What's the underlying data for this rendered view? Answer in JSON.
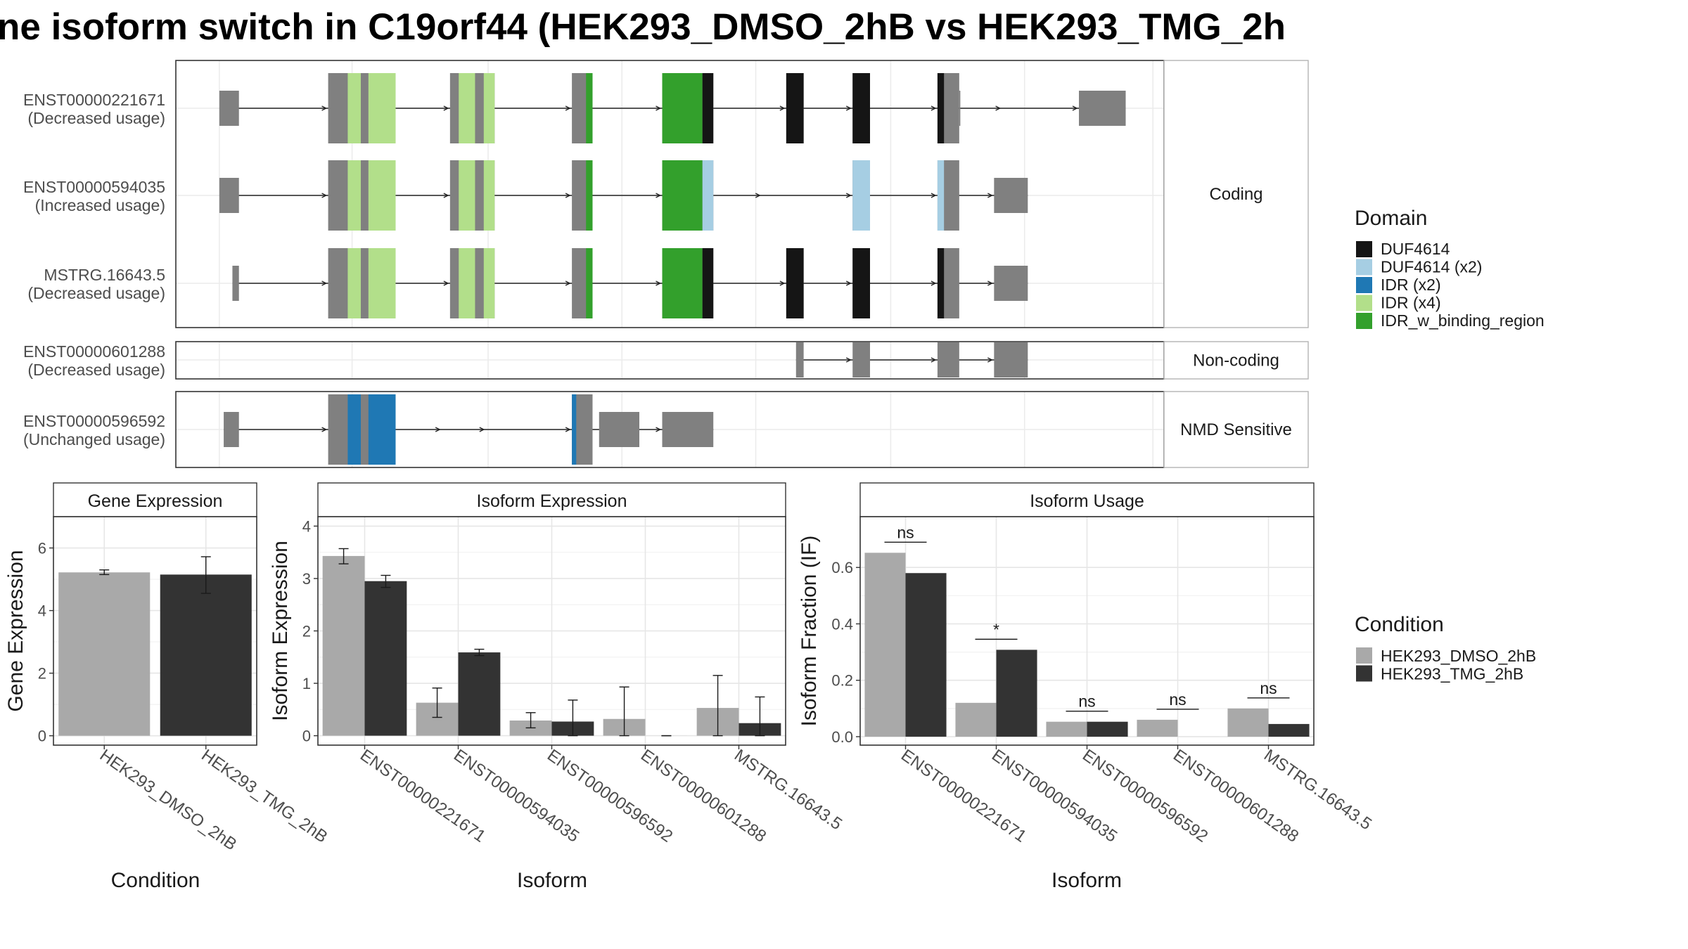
{
  "title": "ne isoform switch in C19orf44 (HEK293_DMSO_2hB vs HEK293_TMG_2h",
  "colors": {
    "DUF4614": "#151515",
    "DUF4614 (x2)": "#a6cee3",
    "IDR (x2)": "#1f78b4",
    "IDR (x4)": "#b2df8a",
    "IDR_w_binding_region": "#33a02c",
    "exon": "#808080",
    "cond_dmso": "#a9a9a9",
    "cond_tmg": "#333333"
  },
  "structure": {
    "groups": [
      {
        "label": "Coding",
        "transcripts": [
          0,
          1,
          2
        ]
      },
      {
        "label": "Non-coding",
        "transcripts": [
          3
        ]
      },
      {
        "label": "NMD Sensitive",
        "transcripts": [
          4
        ]
      }
    ],
    "transcripts": [
      {
        "id": "ENST00000221671",
        "usage": "(Decreased usage)",
        "exons": [
          [
            200,
            218,
            "s"
          ],
          [
            300,
            362,
            "t"
          ],
          [
            412,
            453,
            "t"
          ],
          [
            524,
            543,
            "t"
          ],
          [
            607,
            654,
            "t"
          ],
          [
            721,
            737,
            "t"
          ],
          [
            782,
            798,
            "t"
          ],
          [
            860,
            880,
            "t"
          ],
          [
            880,
            881,
            "s"
          ],
          [
            990,
            1033,
            "s"
          ]
        ],
        "domains": [
          [
            318,
            330,
            "IDR (x4)"
          ],
          [
            337,
            362,
            "IDR (x4)"
          ],
          [
            420,
            435,
            "IDR (x4)"
          ],
          [
            443,
            453,
            "IDR (x4)"
          ],
          [
            537,
            543,
            "IDR_w_binding_region"
          ],
          [
            607,
            644,
            "IDR_w_binding_region"
          ],
          [
            644,
            654,
            "DUF4614"
          ],
          [
            721,
            737,
            "DUF4614"
          ],
          [
            782,
            798,
            "DUF4614"
          ],
          [
            860,
            866,
            "DUF4614"
          ]
        ]
      },
      {
        "id": "ENST00000594035",
        "usage": "(Increased usage)",
        "exons": [
          [
            200,
            218,
            "s"
          ],
          [
            300,
            362,
            "t"
          ],
          [
            412,
            453,
            "t"
          ],
          [
            524,
            543,
            "t"
          ],
          [
            607,
            654,
            "t"
          ],
          [
            782,
            798,
            "t"
          ],
          [
            860,
            880,
            "t"
          ],
          [
            912,
            943,
            "s"
          ]
        ],
        "domains": [
          [
            318,
            330,
            "IDR (x4)"
          ],
          [
            337,
            362,
            "IDR (x4)"
          ],
          [
            420,
            435,
            "IDR (x4)"
          ],
          [
            443,
            453,
            "IDR (x4)"
          ],
          [
            537,
            543,
            "IDR_w_binding_region"
          ],
          [
            607,
            644,
            "IDR_w_binding_region"
          ],
          [
            644,
            654,
            "DUF4614 (x2)"
          ],
          [
            782,
            798,
            "DUF4614 (x2)"
          ],
          [
            860,
            866,
            "DUF4614 (x2)"
          ]
        ]
      },
      {
        "id": "MSTRG.16643.5",
        "usage": "(Decreased usage)",
        "exons": [
          [
            212,
            218,
            "s"
          ],
          [
            300,
            362,
            "t"
          ],
          [
            412,
            453,
            "t"
          ],
          [
            524,
            543,
            "t"
          ],
          [
            607,
            654,
            "t"
          ],
          [
            721,
            737,
            "t"
          ],
          [
            782,
            798,
            "t"
          ],
          [
            860,
            880,
            "t"
          ],
          [
            912,
            943,
            "s"
          ]
        ],
        "domains": [
          [
            318,
            330,
            "IDR (x4)"
          ],
          [
            337,
            362,
            "IDR (x4)"
          ],
          [
            420,
            435,
            "IDR (x4)"
          ],
          [
            443,
            453,
            "IDR (x4)"
          ],
          [
            537,
            543,
            "IDR_w_binding_region"
          ],
          [
            607,
            644,
            "IDR_w_binding_region"
          ],
          [
            644,
            654,
            "DUF4614"
          ],
          [
            721,
            737,
            "DUF4614"
          ],
          [
            782,
            798,
            "DUF4614"
          ],
          [
            860,
            866,
            "DUF4614"
          ]
        ]
      },
      {
        "id": "ENST00000601288",
        "usage": "(Decreased usage)",
        "exons": [
          [
            730,
            737,
            "s"
          ],
          [
            782,
            798,
            "s"
          ],
          [
            860,
            880,
            "s"
          ],
          [
            912,
            943,
            "s"
          ]
        ],
        "domains": []
      },
      {
        "id": "ENST00000596592",
        "usage": "(Unchanged usage)",
        "exons": [
          [
            204,
            218,
            "s"
          ],
          [
            300,
            362,
            "t"
          ],
          [
            524,
            543,
            "t"
          ],
          [
            549,
            586,
            "s"
          ],
          [
            607,
            654,
            "s"
          ]
        ],
        "domains": [
          [
            318,
            330,
            "IDR (x2)"
          ],
          [
            337,
            362,
            "IDR (x2)"
          ],
          [
            524,
            528,
            "IDR (x2)"
          ]
        ]
      }
    ]
  },
  "legend_domain": {
    "title": "Domain",
    "items": [
      "DUF4614",
      "DUF4614 (x2)",
      "IDR (x2)",
      "IDR (x4)",
      "IDR_w_binding_region"
    ]
  },
  "legend_condition": {
    "title": "Condition",
    "items": [
      "HEK293_DMSO_2hB",
      "HEK293_TMG_2hB"
    ]
  },
  "chart_data": [
    {
      "type": "bar",
      "title": "Gene Expression",
      "xlabel": "Condition",
      "ylabel": "Gene Expression",
      "ylim": [
        -0.3,
        7.0
      ],
      "yticks": [
        0,
        2,
        4,
        6
      ],
      "categories": [
        "HEK293_DMSO_2hB",
        "HEK293_TMG_2hB"
      ],
      "values": [
        5.22,
        5.15
      ],
      "error_bars": [
        [
          5.15,
          5.3
        ],
        [
          4.55,
          5.72
        ]
      ]
    },
    {
      "type": "bar",
      "title": "Isoform Expression",
      "xlabel": "Isoform",
      "ylabel": "Isoform Expression",
      "ylim": [
        -0.18,
        4.18
      ],
      "yticks": [
        0,
        1,
        2,
        3,
        4
      ],
      "categories": [
        "ENST00000221671",
        "ENST00000594035",
        "ENST00000596592",
        "ENST00000601288",
        "MSTRG.16643.5"
      ],
      "series": [
        {
          "name": "HEK293_DMSO_2hB",
          "values": [
            3.43,
            0.63,
            0.29,
            0.32,
            0.53
          ],
          "error_bars": [
            [
              3.28,
              3.57
            ],
            [
              0.35,
              0.91
            ],
            [
              0.15,
              0.44
            ],
            [
              0,
              0.93
            ],
            [
              0,
              1.15
            ]
          ]
        },
        {
          "name": "HEK293_TMG_2hB",
          "values": [
            2.95,
            1.59,
            0.27,
            0.0,
            0.24
          ],
          "error_bars": [
            [
              2.83,
              3.06
            ],
            [
              1.53,
              1.65
            ],
            [
              0,
              0.68
            ],
            [
              0,
              0
            ],
            [
              0,
              0.74
            ]
          ]
        }
      ]
    },
    {
      "type": "bar",
      "title": "Isoform Usage",
      "xlabel": "Isoform",
      "ylabel": "Isoform Fraction (IF)",
      "ylim": [
        -0.03,
        0.78
      ],
      "yticks": [
        "0.0",
        "0.2",
        "0.4",
        "0.6"
      ],
      "categories": [
        "ENST00000221671",
        "ENST00000594035",
        "ENST00000596592",
        "ENST00000601288",
        "MSTRG.16643.5"
      ],
      "series": [
        {
          "name": "HEK293_DMSO_2hB",
          "values": [
            0.652,
            0.12,
            0.053,
            0.06,
            0.1
          ]
        },
        {
          "name": "HEK293_TMG_2hB",
          "values": [
            0.58,
            0.308,
            0.053,
            0.0,
            0.045
          ]
        }
      ],
      "significance": [
        "ns",
        "*",
        "ns",
        "ns",
        "ns"
      ]
    }
  ]
}
